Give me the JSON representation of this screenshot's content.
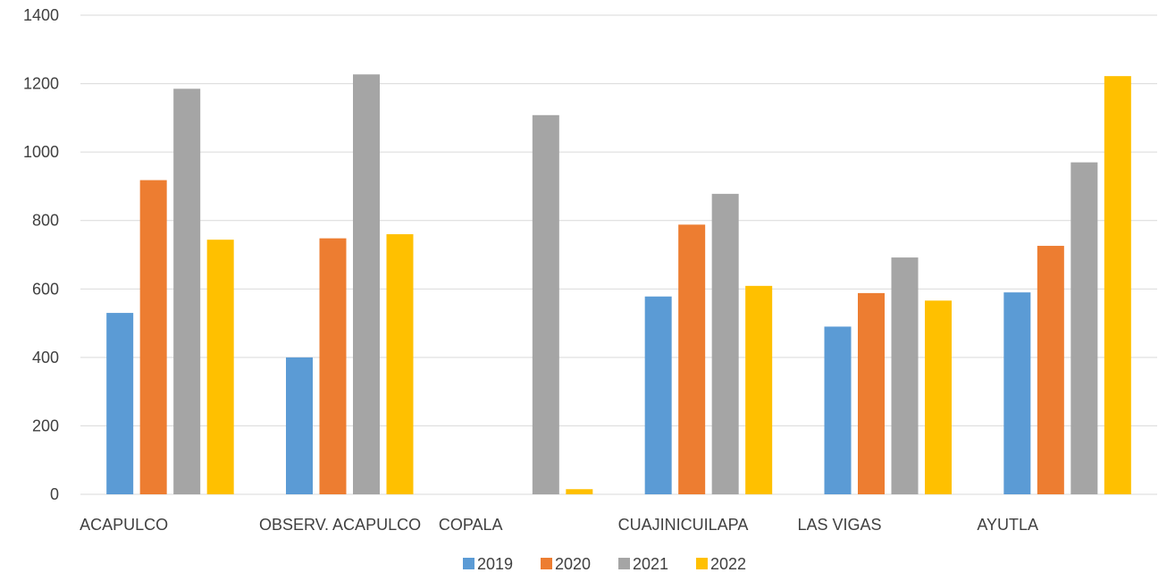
{
  "chart_data": {
    "type": "bar",
    "title": "",
    "xlabel": "",
    "ylabel": "",
    "categories": [
      "ACAPULCO",
      "OBSERV. ACAPULCO",
      "COPALA",
      "CUAJINICUILAPA",
      "LAS VIGAS",
      "AYUTLA"
    ],
    "series": [
      {
        "name": "2019",
        "color": "#5B9BD5",
        "values": [
          530,
          400,
          0,
          578,
          490,
          590
        ]
      },
      {
        "name": "2020",
        "color": "#ED7D31",
        "values": [
          918,
          748,
          0,
          788,
          588,
          726
        ]
      },
      {
        "name": "2021",
        "color": "#A5A5A5",
        "values": [
          1185,
          1227,
          1108,
          878,
          692,
          970
        ]
      },
      {
        "name": "2022",
        "color": "#FFC000",
        "values": [
          744,
          760,
          15,
          609,
          566,
          1222
        ]
      }
    ],
    "ylim": [
      0,
      1400
    ],
    "yticks": [
      0,
      200,
      400,
      600,
      800,
      1000,
      1200,
      1400
    ],
    "grid": true,
    "legend": "bottom",
    "gridline_color": "#D9D9D9"
  }
}
